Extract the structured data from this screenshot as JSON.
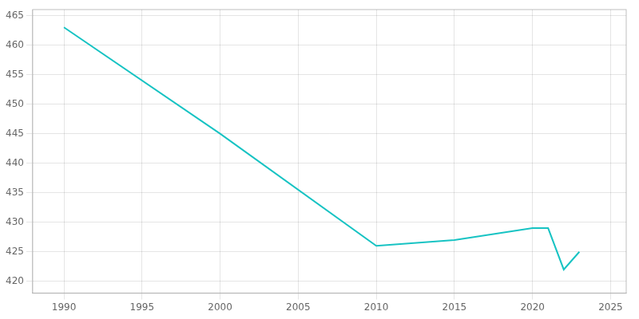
{
  "chart_data": {
    "type": "line",
    "x": [
      1990,
      2000,
      2010,
      2015,
      2020,
      2021,
      2022,
      2023
    ],
    "values": [
      463,
      445,
      426,
      427,
      429,
      429,
      422,
      425
    ],
    "color": "#17c3c3",
    "xlim": [
      1988,
      2026
    ],
    "xticks": [
      1990,
      1995,
      2000,
      2005,
      2010,
      2015,
      2020,
      2025
    ],
    "ylim": [
      418,
      466
    ],
    "yticks": [
      420,
      425,
      430,
      435,
      440,
      445,
      450,
      455,
      460,
      465
    ],
    "grid": true
  }
}
